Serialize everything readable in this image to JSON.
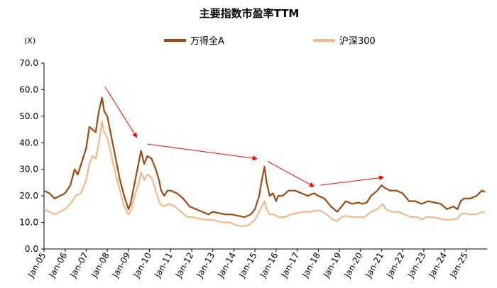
{
  "chart_data": {
    "type": "line",
    "title": "主要指数市盈率TTM",
    "unit_label": "(X)",
    "ylim": [
      0,
      70
    ],
    "yticks": [
      "0.0",
      "10.0",
      "20.0",
      "30.0",
      "40.0",
      "50.0",
      "60.0",
      "70.0"
    ],
    "x_start": 2005.0,
    "x_end": 2026.0,
    "xticks": [
      "Jan-05",
      "Jan-06",
      "Jan-07",
      "Jan-08",
      "Jan-09",
      "Jan-10",
      "Jan-11",
      "Jan-12",
      "Jan-13",
      "Jan-14",
      "Jan-15",
      "Jan-16",
      "Jan-17",
      "Jan-18",
      "Jan-19",
      "Jan-20",
      "Jan-21",
      "Jan-22",
      "Jan-23",
      "Jan-24",
      "Jan-25"
    ],
    "legend_position": "top",
    "series": [
      {
        "name": "万得全A",
        "color": "#9c4a12",
        "points": [
          [
            2005.0,
            22
          ],
          [
            2005.25,
            21
          ],
          [
            2005.5,
            19
          ],
          [
            2005.75,
            20
          ],
          [
            2006.0,
            21
          ],
          [
            2006.25,
            24
          ],
          [
            2006.45,
            30
          ],
          [
            2006.6,
            28
          ],
          [
            2006.8,
            33
          ],
          [
            2007.0,
            38
          ],
          [
            2007.15,
            46
          ],
          [
            2007.3,
            45
          ],
          [
            2007.45,
            44
          ],
          [
            2007.6,
            52
          ],
          [
            2007.75,
            57
          ],
          [
            2007.85,
            52
          ],
          [
            2008.0,
            50
          ],
          [
            2008.2,
            42
          ],
          [
            2008.4,
            34
          ],
          [
            2008.6,
            26
          ],
          [
            2008.8,
            20
          ],
          [
            2009.0,
            15
          ],
          [
            2009.1,
            17
          ],
          [
            2009.3,
            25
          ],
          [
            2009.5,
            33
          ],
          [
            2009.6,
            37
          ],
          [
            2009.75,
            32
          ],
          [
            2009.9,
            35
          ],
          [
            2010.1,
            34
          ],
          [
            2010.3,
            30
          ],
          [
            2010.45,
            26
          ],
          [
            2010.55,
            22
          ],
          [
            2010.7,
            20
          ],
          [
            2010.85,
            22
          ],
          [
            2011.0,
            22
          ],
          [
            2011.3,
            21
          ],
          [
            2011.6,
            19
          ],
          [
            2011.9,
            16
          ],
          [
            2012.2,
            15
          ],
          [
            2012.5,
            14
          ],
          [
            2012.8,
            13
          ],
          [
            2013.0,
            14
          ],
          [
            2013.3,
            13.5
          ],
          [
            2013.6,
            13
          ],
          [
            2013.9,
            13
          ],
          [
            2014.2,
            12.5
          ],
          [
            2014.5,
            12
          ],
          [
            2014.8,
            13
          ],
          [
            2015.0,
            15
          ],
          [
            2015.2,
            20
          ],
          [
            2015.3,
            25
          ],
          [
            2015.45,
            31
          ],
          [
            2015.55,
            25
          ],
          [
            2015.7,
            20
          ],
          [
            2015.85,
            21
          ],
          [
            2016.0,
            18
          ],
          [
            2016.1,
            20
          ],
          [
            2016.3,
            20
          ],
          [
            2016.6,
            22
          ],
          [
            2016.9,
            22
          ],
          [
            2017.2,
            21
          ],
          [
            2017.5,
            20
          ],
          [
            2017.8,
            21
          ],
          [
            2018.0,
            20
          ],
          [
            2018.3,
            19
          ],
          [
            2018.6,
            16
          ],
          [
            2018.9,
            14
          ],
          [
            2019.1,
            16
          ],
          [
            2019.3,
            18
          ],
          [
            2019.6,
            17
          ],
          [
            2019.9,
            17.5
          ],
          [
            2020.1,
            17
          ],
          [
            2020.3,
            17.5
          ],
          [
            2020.5,
            20
          ],
          [
            2020.8,
            22
          ],
          [
            2021.0,
            24
          ],
          [
            2021.15,
            23
          ],
          [
            2021.4,
            22
          ],
          [
            2021.7,
            22
          ],
          [
            2022.0,
            21
          ],
          [
            2022.3,
            18
          ],
          [
            2022.6,
            18
          ],
          [
            2022.9,
            17
          ],
          [
            2023.2,
            18
          ],
          [
            2023.5,
            17.5
          ],
          [
            2023.8,
            17
          ],
          [
            2024.1,
            15
          ],
          [
            2024.4,
            16
          ],
          [
            2024.6,
            15
          ],
          [
            2024.75,
            18
          ],
          [
            2024.9,
            19
          ],
          [
            2025.2,
            19
          ],
          [
            2025.5,
            20
          ],
          [
            2025.75,
            22
          ],
          [
            2025.9,
            21.5
          ]
        ]
      },
      {
        "name": "沪深300",
        "color": "#f4b98a",
        "points": [
          [
            2005.0,
            15
          ],
          [
            2005.25,
            14
          ],
          [
            2005.5,
            13
          ],
          [
            2005.75,
            14
          ],
          [
            2006.0,
            15
          ],
          [
            2006.25,
            17
          ],
          [
            2006.5,
            20
          ],
          [
            2006.75,
            21
          ],
          [
            2007.0,
            26
          ],
          [
            2007.15,
            32
          ],
          [
            2007.3,
            35
          ],
          [
            2007.45,
            34
          ],
          [
            2007.6,
            40
          ],
          [
            2007.75,
            48
          ],
          [
            2007.85,
            44
          ],
          [
            2008.0,
            42
          ],
          [
            2008.2,
            35
          ],
          [
            2008.4,
            28
          ],
          [
            2008.6,
            22
          ],
          [
            2008.8,
            16
          ],
          [
            2009.0,
            13
          ],
          [
            2009.1,
            14
          ],
          [
            2009.3,
            20
          ],
          [
            2009.5,
            25
          ],
          [
            2009.6,
            29
          ],
          [
            2009.75,
            26
          ],
          [
            2009.9,
            28
          ],
          [
            2010.1,
            27
          ],
          [
            2010.3,
            22
          ],
          [
            2010.5,
            17
          ],
          [
            2010.7,
            16
          ],
          [
            2010.9,
            17
          ],
          [
            2011.2,
            16
          ],
          [
            2011.5,
            14
          ],
          [
            2011.8,
            12
          ],
          [
            2012.0,
            12
          ],
          [
            2012.3,
            11.5
          ],
          [
            2012.6,
            11
          ],
          [
            2012.9,
            11
          ],
          [
            2013.2,
            10.5
          ],
          [
            2013.5,
            10
          ],
          [
            2013.8,
            10
          ],
          [
            2014.1,
            9
          ],
          [
            2014.4,
            8.5
          ],
          [
            2014.7,
            9
          ],
          [
            2015.0,
            11
          ],
          [
            2015.2,
            14
          ],
          [
            2015.45,
            18
          ],
          [
            2015.55,
            15
          ],
          [
            2015.7,
            13
          ],
          [
            2015.9,
            13
          ],
          [
            2016.1,
            12
          ],
          [
            2016.4,
            12
          ],
          [
            2016.7,
            13
          ],
          [
            2017.0,
            13.5
          ],
          [
            2017.3,
            14
          ],
          [
            2017.6,
            14
          ],
          [
            2017.9,
            14.5
          ],
          [
            2018.1,
            14.5
          ],
          [
            2018.4,
            13
          ],
          [
            2018.7,
            11
          ],
          [
            2018.9,
            10.5
          ],
          [
            2019.1,
            12
          ],
          [
            2019.3,
            12.5
          ],
          [
            2019.6,
            12
          ],
          [
            2019.9,
            12
          ],
          [
            2020.2,
            12
          ],
          [
            2020.5,
            14
          ],
          [
            2020.8,
            15
          ],
          [
            2021.05,
            17
          ],
          [
            2021.2,
            15
          ],
          [
            2021.5,
            14
          ],
          [
            2021.8,
            14
          ],
          [
            2022.1,
            13
          ],
          [
            2022.4,
            12
          ],
          [
            2022.7,
            12
          ],
          [
            2022.9,
            11
          ],
          [
            2023.1,
            12
          ],
          [
            2023.4,
            12
          ],
          [
            2023.7,
            11.5
          ],
          [
            2024.0,
            11
          ],
          [
            2024.3,
            11
          ],
          [
            2024.6,
            11.5
          ],
          [
            2024.75,
            13
          ],
          [
            2024.9,
            13.5
          ],
          [
            2025.2,
            13
          ],
          [
            2025.5,
            13
          ],
          [
            2025.75,
            14
          ],
          [
            2025.9,
            13.5
          ]
        ]
      }
    ],
    "annotations": {
      "arrows": [
        {
          "from": [
            2007.9,
            61
          ],
          "to": [
            2009.4,
            42
          ]
        },
        {
          "from": [
            2009.9,
            39.5
          ],
          "to": [
            2015.1,
            34
          ]
        },
        {
          "from": [
            2015.6,
            33
          ],
          "to": [
            2017.8,
            23.5
          ]
        },
        {
          "from": [
            2018.1,
            24
          ],
          "to": [
            2021.1,
            27
          ]
        }
      ],
      "color": "#ff0000"
    }
  }
}
